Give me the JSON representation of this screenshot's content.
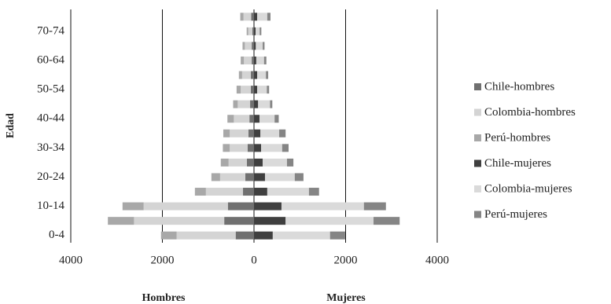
{
  "chart_data": {
    "type": "pyramid",
    "y_label": "Edad",
    "x_labels": [
      "Hombres",
      "Mujeres"
    ],
    "categories": [
      "0-4",
      null,
      "10-14",
      null,
      "20-24",
      null,
      "30-34",
      null,
      "40-44",
      null,
      "50-54",
      null,
      "60-64",
      null,
      "70-74",
      null
    ],
    "series": [
      {
        "name": "Chile-hombres",
        "color": "#707070",
        "values": [
          -400,
          -650,
          -570,
          -240,
          -190,
          -155,
          -140,
          -120,
          -100,
          -85,
          -70,
          -70,
          -50,
          -50,
          -35,
          -60
        ]
      },
      {
        "name": "Colombia-hombres",
        "color": "#d4d4d4",
        "values": [
          -1290,
          -1970,
          -1840,
          -810,
          -550,
          -400,
          -390,
          -410,
          -340,
          -270,
          -220,
          -190,
          -170,
          -150,
          -90,
          -170
        ]
      },
      {
        "name": "Perú-hombres",
        "color": "#a8a8a8",
        "values": [
          -340,
          -570,
          -460,
          -240,
          -190,
          -170,
          -150,
          -140,
          -140,
          -100,
          -90,
          -70,
          -70,
          -50,
          -35,
          -70
        ]
      },
      {
        "name": "Chile-mujeres",
        "color": "#3f3f3f",
        "values": [
          410,
          690,
          600,
          290,
          240,
          190,
          155,
          140,
          120,
          90,
          70,
          70,
          50,
          40,
          35,
          70
        ]
      },
      {
        "name": "Colombia-mujeres",
        "color": "#dadada",
        "values": [
          1250,
          1920,
          1800,
          910,
          650,
          530,
          460,
          410,
          330,
          260,
          210,
          190,
          170,
          150,
          90,
          220
        ]
      },
      {
        "name": "Perú-mujeres",
        "color": "#858585",
        "values": [
          330,
          570,
          480,
          220,
          190,
          140,
          140,
          140,
          90,
          50,
          50,
          50,
          50,
          40,
          35,
          70
        ]
      }
    ],
    "xlim": [
      -4000,
      4000
    ],
    "xticks": [
      {
        "value": -4000,
        "label": "4000"
      },
      {
        "value": -2000,
        "label": "2000"
      },
      0,
      2000,
      4000
    ],
    "grid": true,
    "legend": "right"
  }
}
